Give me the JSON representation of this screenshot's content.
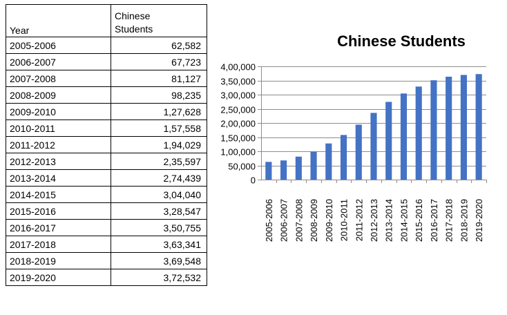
{
  "table": {
    "header_year": "Year",
    "header_value_line1": "Chinese",
    "header_value_line2": "Students",
    "rows": [
      {
        "year": "2005-2006",
        "value": "62,582"
      },
      {
        "year": "2006-2007",
        "value": "67,723"
      },
      {
        "year": "2007-2008",
        "value": "81,127"
      },
      {
        "year": "2008-2009",
        "value": "98,235"
      },
      {
        "year": "2009-2010",
        "value": "1,27,628"
      },
      {
        "year": "2010-2011",
        "value": "1,57,558"
      },
      {
        "year": "2011-2012",
        "value": "1,94,029"
      },
      {
        "year": "2012-2013",
        "value": "2,35,597"
      },
      {
        "year": "2013-2014",
        "value": "2,74,439"
      },
      {
        "year": "2014-2015",
        "value": "3,04,040"
      },
      {
        "year": "2015-2016",
        "value": "3,28,547"
      },
      {
        "year": "2016-2017",
        "value": "3,50,755"
      },
      {
        "year": "2017-2018",
        "value": "3,63,341"
      },
      {
        "year": "2018-2019",
        "value": "3,69,548"
      },
      {
        "year": "2019-2020",
        "value": "3,72,532"
      }
    ]
  },
  "chart_data": {
    "type": "bar",
    "title": "Chinese Students",
    "categories": [
      "2005-2006",
      "2006-2007",
      "2007-2008",
      "2008-2009",
      "2009-2010",
      "2010-2011",
      "2011-2012",
      "2012-2013",
      "2013-2014",
      "2014-2015",
      "2015-2016",
      "2016-2017",
      "2017-2018",
      "2018-2019",
      "2019-2020"
    ],
    "values": [
      62582,
      67723,
      81127,
      98235,
      127628,
      157558,
      194029,
      235597,
      274439,
      304040,
      328547,
      350755,
      363341,
      369548,
      372532
    ],
    "ylim": [
      0,
      400000
    ],
    "yticks": [
      0,
      50000,
      100000,
      150000,
      200000,
      250000,
      300000,
      350000,
      400000
    ],
    "ytick_labels": [
      "0",
      "50,000",
      "1,00,000",
      "1,50,000",
      "2,00,000",
      "2,50,000",
      "3,00,000",
      "3,50,000",
      "4,00,000"
    ],
    "xlabel": "",
    "ylabel": "",
    "grid": true,
    "legend": "none",
    "bar_color": "#4472C4",
    "grid_color": "#8c8c8c"
  }
}
